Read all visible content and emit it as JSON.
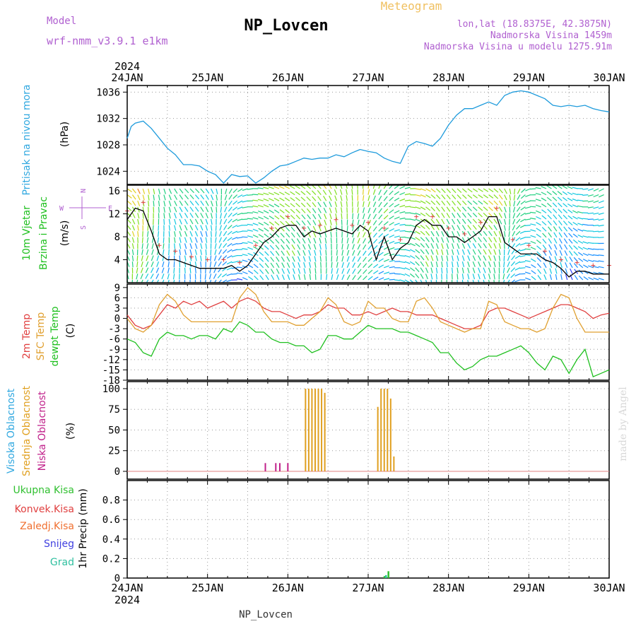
{
  "header": {
    "model_label": "Model",
    "model_name": "wrf-nmm_v3.9.1 e1km",
    "title": "NP_Lovcen",
    "product": "Meteogram",
    "lonlat": "lon,lat (18.8375E, 42.3875N)",
    "elevation": "Nadmorska Visina 1459m",
    "model_elevation": "Nadmorska Visina u modelu 1275.91m",
    "footer": "NP_Lovcen",
    "watermark": "made by Angel"
  },
  "time_axis": {
    "year": "2024",
    "labels": [
      "24JAN",
      "25JAN",
      "26JAN",
      "27JAN",
      "28JAN",
      "29JAN",
      "30JAN"
    ]
  },
  "colors": {
    "pressure": "#1e9bdc",
    "temp2m": "#e04040",
    "sfc": "#e0a030",
    "dewpt": "#20c020",
    "high_cloud": "#30a8e0",
    "mid_cloud": "#e0a020",
    "low_cloud": "#c0208a",
    "wind_speed": "#000000"
  },
  "panels": {
    "pressure": {
      "ylabel_name": "Pritisak na nivou mora",
      "unit": "(hPa)",
      "ticks": [
        "1024",
        "1028",
        "1032",
        "1036"
      ]
    },
    "wind": {
      "ylabel_name1": "10m Vjetar",
      "ylabel_name2": "Brzina i Pravac",
      "unit": "(m/s)",
      "ticks": [
        "4",
        "8",
        "12",
        "16"
      ],
      "compass": {
        "n": "N",
        "s": "S",
        "e": "E",
        "w": "W"
      }
    },
    "temperature": {
      "ylabel_t2m": "2m Temp",
      "ylabel_sfc": "SFC Temp",
      "ylabel_dew": "dewpt Temp",
      "unit": "(C)",
      "ticks": [
        "9",
        "6",
        "3",
        "0",
        "-3",
        "-6",
        "-9",
        "-12",
        "-15",
        "-18"
      ]
    },
    "cloud": {
      "ylabel_high": "Visoka Oblacnost",
      "ylabel_mid": "Srednja Oblacnost",
      "ylabel_low": "Niska Oblacnost",
      "unit": "(%)",
      "ticks": [
        "0",
        "25",
        "50",
        "75",
        "100"
      ]
    },
    "precip": {
      "legend": [
        "Ukupna Kisa",
        "Konvek.Kisa",
        "Zaledj.Kisa",
        "Snijeg",
        "Grad"
      ],
      "legend_colors": [
        "#30c030",
        "#e04040",
        "#f07030",
        "#4040e0",
        "#30c0a0"
      ],
      "ylabel": "1hr Precip (mm)",
      "ticks": [
        "0",
        "0.2",
        "0.4",
        "0.6",
        "0.8"
      ]
    }
  },
  "chart_data": [
    {
      "type": "line",
      "name": "pressure",
      "x_unit": "days from 24JAN 00UTC",
      "xlim": [
        0,
        6
      ],
      "ylim": [
        1022,
        1037
      ],
      "series": [
        {
          "name": "Pritisak na nivou mora",
          "x": [
            0,
            0.05,
            0.1,
            0.2,
            0.3,
            0.4,
            0.5,
            0.6,
            0.7,
            0.8,
            0.9,
            1.0,
            1.1,
            1.2,
            1.3,
            1.4,
            1.5,
            1.6,
            1.7,
            1.8,
            1.9,
            2.0,
            2.1,
            2.2,
            2.3,
            2.4,
            2.5,
            2.6,
            2.7,
            2.8,
            2.9,
            3.0,
            3.1,
            3.2,
            3.3,
            3.4,
            3.5,
            3.6,
            3.7,
            3.8,
            3.9,
            4.0,
            4.1,
            4.2,
            4.3,
            4.4,
            4.5,
            4.6,
            4.7,
            4.8,
            4.9,
            5.0,
            5.1,
            5.2,
            5.3,
            5.4,
            5.5,
            5.6,
            5.7,
            5.8,
            5.9,
            6.0
          ],
          "values": [
            1029,
            1030.8,
            1031.3,
            1031.6,
            1030.5,
            1029,
            1027.5,
            1026.5,
            1025,
            1025,
            1024.8,
            1024,
            1023.5,
            1022.2,
            1023.5,
            1023.2,
            1023.3,
            1022.2,
            1023,
            1024,
            1024.8,
            1025,
            1025.5,
            1026,
            1025.8,
            1026,
            1026,
            1026.5,
            1026.2,
            1026.8,
            1027.3,
            1027,
            1026.8,
            1026,
            1025.5,
            1025.2,
            1027.8,
            1028.5,
            1028.2,
            1027.8,
            1029,
            1031,
            1032.5,
            1033.5,
            1033.5,
            1034,
            1034.5,
            1034,
            1035.5,
            1036,
            1036.2,
            1036,
            1035.5,
            1035,
            1034,
            1033.8,
            1034,
            1033.8,
            1034,
            1033.5,
            1033.2,
            1033
          ]
        }
      ]
    },
    {
      "type": "line",
      "name": "wind",
      "x_unit": "days from 24JAN 00UTC",
      "xlim": [
        0,
        6
      ],
      "ylim": [
        0,
        17
      ],
      "series": [
        {
          "name": "Brzina i Pravac",
          "x": [
            0,
            0.1,
            0.2,
            0.3,
            0.4,
            0.5,
            0.6,
            0.7,
            0.8,
            0.9,
            1.0,
            1.1,
            1.2,
            1.3,
            1.4,
            1.5,
            1.6,
            1.7,
            1.8,
            1.9,
            2.0,
            2.1,
            2.2,
            2.3,
            2.4,
            2.5,
            2.6,
            2.7,
            2.8,
            2.9,
            3.0,
            3.1,
            3.2,
            3.3,
            3.4,
            3.5,
            3.6,
            3.7,
            3.8,
            3.9,
            4.0,
            4.1,
            4.2,
            4.3,
            4.4,
            4.5,
            4.6,
            4.7,
            4.8,
            4.9,
            5.0,
            5.1,
            5.2,
            5.3,
            5.4,
            5.5,
            5.6,
            5.7,
            5.8,
            5.9,
            6.0
          ],
          "values": [
            11,
            13,
            12.5,
            9,
            5,
            4,
            4,
            3.5,
            3,
            2.5,
            2.5,
            2.5,
            2.5,
            3,
            2,
            3,
            5,
            7,
            8,
            9.5,
            10,
            10,
            8,
            9,
            8.5,
            9,
            9.5,
            9,
            8.5,
            10,
            9,
            4,
            8,
            4,
            6,
            7,
            10,
            11,
            10,
            10,
            8,
            8,
            7,
            8,
            9,
            11.5,
            11.5,
            7,
            6,
            5,
            5,
            5,
            4,
            3.5,
            2.5,
            1,
            2,
            2,
            1.5,
            1.5,
            1.5
          ]
        }
      ]
    },
    {
      "type": "line",
      "name": "temperature",
      "x_unit": "days from 24JAN 00UTC",
      "xlim": [
        0,
        6
      ],
      "ylim": [
        -18,
        10
      ],
      "series": [
        {
          "name": "2m Temp",
          "x": [
            0,
            0.1,
            0.2,
            0.3,
            0.4,
            0.5,
            0.6,
            0.7,
            0.8,
            0.9,
            1.0,
            1.1,
            1.2,
            1.3,
            1.4,
            1.5,
            1.6,
            1.7,
            1.8,
            1.9,
            2.0,
            2.1,
            2.2,
            2.3,
            2.4,
            2.5,
            2.6,
            2.7,
            2.8,
            2.9,
            3.0,
            3.1,
            3.2,
            3.3,
            3.4,
            3.5,
            3.6,
            3.7,
            3.8,
            3.9,
            4.0,
            4.1,
            4.2,
            4.3,
            4.4,
            4.5,
            4.6,
            4.7,
            4.8,
            4.9,
            5.0,
            5.1,
            5.2,
            5.3,
            5.4,
            5.5,
            5.6,
            5.7,
            5.8,
            5.9,
            6.0
          ],
          "values": [
            1,
            -2,
            -3,
            -2,
            1,
            4,
            3,
            5,
            4,
            5,
            3,
            4,
            5,
            3,
            5,
            6,
            5,
            3,
            2,
            2,
            1,
            0,
            1,
            1,
            2,
            4,
            3,
            3,
            1,
            1,
            2,
            1,
            2,
            3,
            2,
            2,
            1,
            1,
            1,
            0,
            -1,
            -2,
            -3,
            -3,
            -2,
            2,
            3,
            3,
            2,
            1,
            0,
            1,
            2,
            3,
            4,
            4,
            3,
            2,
            0,
            1,
            1.5
          ]
        },
        {
          "name": "SFC Temp",
          "x": [
            0,
            0.1,
            0.2,
            0.3,
            0.4,
            0.5,
            0.6,
            0.7,
            0.8,
            0.9,
            1.0,
            1.1,
            1.2,
            1.3,
            1.4,
            1.5,
            1.6,
            1.7,
            1.8,
            1.9,
            2.0,
            2.1,
            2.2,
            2.3,
            2.4,
            2.5,
            2.6,
            2.7,
            2.8,
            2.9,
            3.0,
            3.1,
            3.2,
            3.3,
            3.4,
            3.5,
            3.6,
            3.7,
            3.8,
            3.9,
            4.0,
            4.1,
            4.2,
            4.3,
            4.4,
            4.5,
            4.6,
            4.7,
            4.8,
            4.9,
            5.0,
            5.1,
            5.2,
            5.3,
            5.4,
            5.5,
            5.6,
            5.7,
            5.8,
            5.9,
            6.0
          ],
          "values": [
            0,
            -3,
            -4,
            -2,
            4,
            7,
            5,
            1,
            -1,
            -1,
            -1,
            -1,
            -1,
            -1,
            6,
            9,
            7,
            2,
            -1,
            -1,
            -1,
            -2,
            -2,
            0,
            2,
            6,
            4,
            -1,
            -2,
            -1,
            5,
            3,
            3,
            0,
            -1,
            -1,
            5,
            6,
            3,
            -1,
            -2,
            -3,
            -4,
            -3,
            -3,
            5,
            4,
            -1,
            -2,
            -3,
            -3,
            -4,
            -3,
            3,
            7,
            6,
            0,
            -4,
            -4,
            -4,
            -4
          ]
        },
        {
          "name": "dewpt Temp",
          "x": [
            0,
            0.1,
            0.2,
            0.3,
            0.4,
            0.5,
            0.6,
            0.7,
            0.8,
            0.9,
            1.0,
            1.1,
            1.2,
            1.3,
            1.4,
            1.5,
            1.6,
            1.7,
            1.8,
            1.9,
            2.0,
            2.1,
            2.2,
            2.3,
            2.4,
            2.5,
            2.6,
            2.7,
            2.8,
            2.9,
            3.0,
            3.1,
            3.2,
            3.3,
            3.4,
            3.5,
            3.6,
            3.7,
            3.8,
            3.9,
            4.0,
            4.1,
            4.2,
            4.3,
            4.4,
            4.5,
            4.6,
            4.7,
            4.8,
            4.9,
            5.0,
            5.1,
            5.2,
            5.3,
            5.4,
            5.5,
            5.6,
            5.7,
            5.8,
            5.9,
            6.0
          ],
          "values": [
            -6,
            -7,
            -10,
            -11,
            -6,
            -4,
            -5,
            -5,
            -6,
            -5,
            -5,
            -6,
            -3,
            -4,
            -1,
            -2,
            -4,
            -4,
            -6,
            -7,
            -7,
            -8,
            -8,
            -10,
            -9,
            -5,
            -5,
            -6,
            -6,
            -4,
            -2,
            -3,
            -3,
            -3,
            -4,
            -4,
            -5,
            -6,
            -7,
            -10,
            -10,
            -13,
            -15,
            -14,
            -12,
            -11,
            -11,
            -10,
            -9,
            -8,
            -10,
            -13,
            -15,
            -11,
            -12,
            -16,
            -12,
            -9,
            -17,
            -16,
            -15
          ]
        }
      ]
    },
    {
      "type": "bar",
      "name": "cloud",
      "x_unit": "days from 24JAN 00UTC",
      "xlim": [
        0,
        6
      ],
      "ylim": [
        0,
        100
      ],
      "series": [
        {
          "name": "Srednja Oblacnost",
          "x": [
            2.22,
            2.26,
            2.3,
            2.34,
            2.38,
            2.42,
            2.46,
            3.12,
            3.16,
            3.2,
            3.24,
            3.28,
            3.32
          ],
          "values": [
            100,
            100,
            100,
            100,
            100,
            100,
            95,
            78,
            100,
            100,
            100,
            88,
            18
          ]
        },
        {
          "name": "Niska Oblacnost",
          "x": [
            1.72,
            1.85,
            1.9,
            2.0
          ],
          "values": [
            10,
            10,
            10,
            10
          ]
        },
        {
          "name": "Visoka Oblacnost",
          "x": [],
          "values": []
        }
      ]
    },
    {
      "type": "bar",
      "name": "precip",
      "x_unit": "days from 24JAN 00UTC",
      "xlim": [
        0,
        6
      ],
      "ylim": [
        0,
        1
      ],
      "series": [
        {
          "name": "Ukupna Kisa",
          "x": [
            3.2,
            3.25
          ],
          "values": [
            0.02,
            0.07
          ]
        },
        {
          "name": "Grad",
          "x": [
            3.22
          ],
          "values": [
            0.03
          ]
        }
      ]
    }
  ]
}
